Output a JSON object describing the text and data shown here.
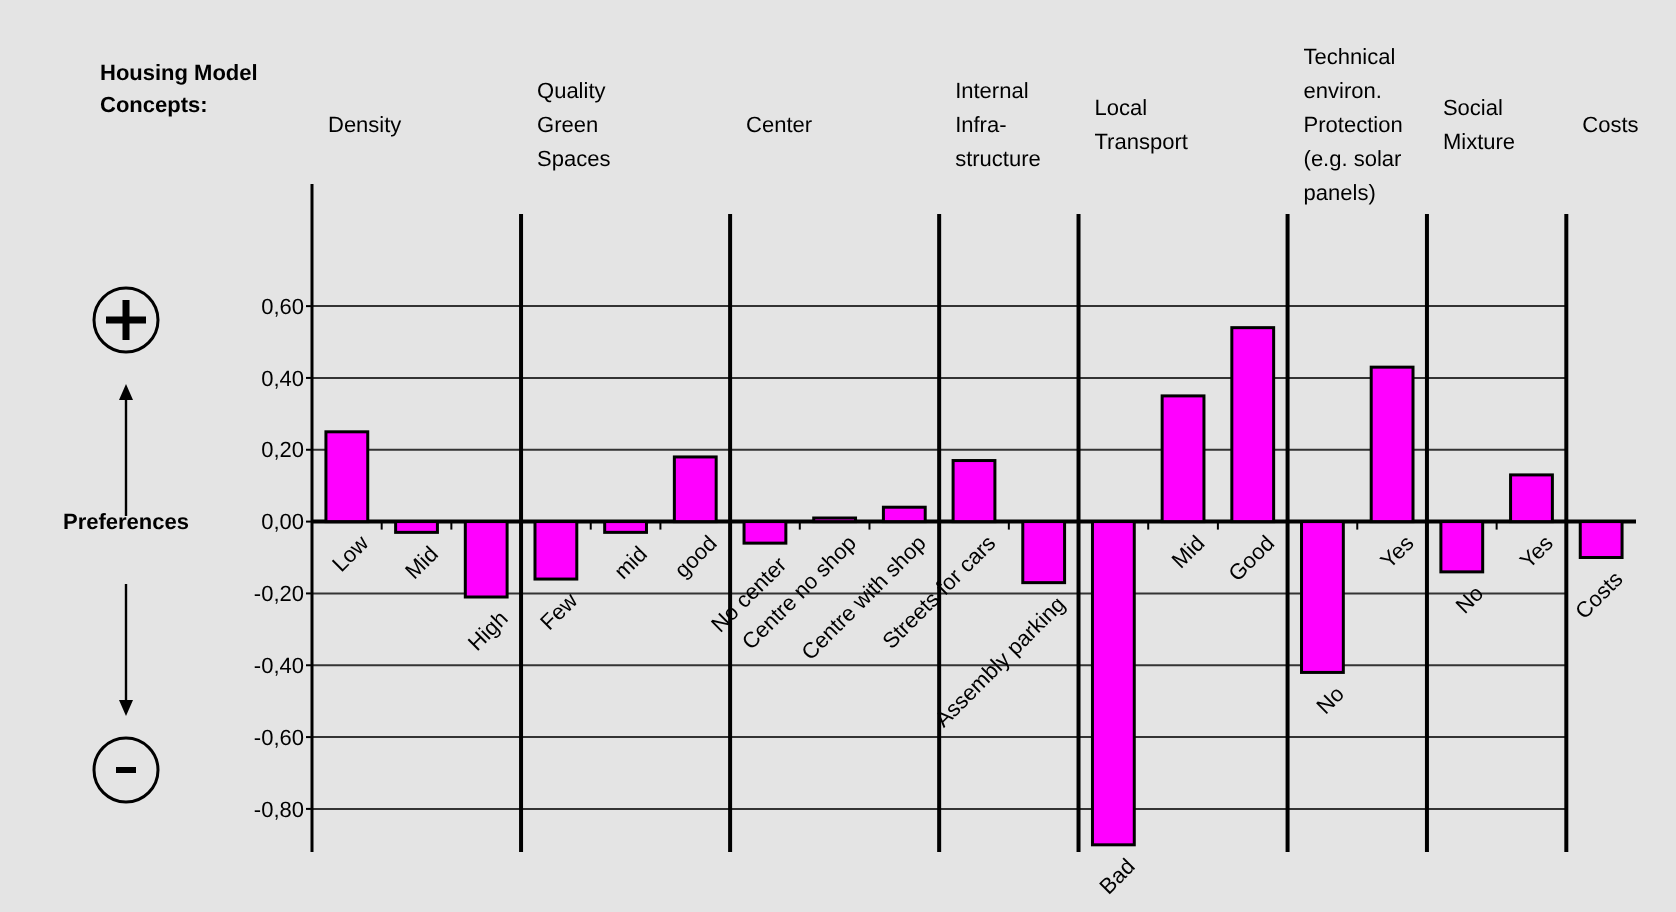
{
  "chart_data": {
    "type": "bar",
    "title": "Housing Model Concepts:",
    "ylabel": "Preferences",
    "categories": [
      "Low",
      "Mid",
      "High",
      "Few",
      "mid",
      "good",
      "No center",
      "Centre no shop",
      "Centre with shop",
      "Streets for cars",
      "Assembly parking",
      "Bad",
      "Mid",
      "Good",
      "No",
      "Yes",
      "No",
      "Yes",
      "Costs"
    ],
    "values": [
      0.25,
      -0.03,
      -0.21,
      -0.16,
      -0.03,
      0.18,
      -0.06,
      0.01,
      0.04,
      0.17,
      -0.17,
      -0.9,
      0.35,
      0.54,
      -0.42,
      0.43,
      -0.14,
      0.13,
      -0.1
    ],
    "color": "#ff00ff",
    "annotations": [
      "Density",
      "Quality\nGreen\nSpaces",
      "Center",
      "Internal\nInfra-\nstructure",
      "Local\nTransport",
      "Technical\nenviron.\nProtection\n(e.g. solar\npanels)",
      "Social\nMixture",
      "Costs"
    ],
    "ylim": [
      -0.92,
      0.94
    ],
    "yticks": [
      {
        "value": 0.6,
        "label": "0,60"
      },
      {
        "value": 0.4,
        "label": "0,40"
      },
      {
        "value": 0.2,
        "label": "0,20"
      },
      {
        "value": 0,
        "label": "0,00"
      },
      {
        "value": -0.2,
        "label": "-0,20"
      },
      {
        "value": -0.4,
        "label": "-0,40"
      },
      {
        "value": -0.6,
        "label": "-0,60"
      },
      {
        "value": -0.8,
        "label": "-0,80"
      }
    ],
    "grid": "y"
  }
}
